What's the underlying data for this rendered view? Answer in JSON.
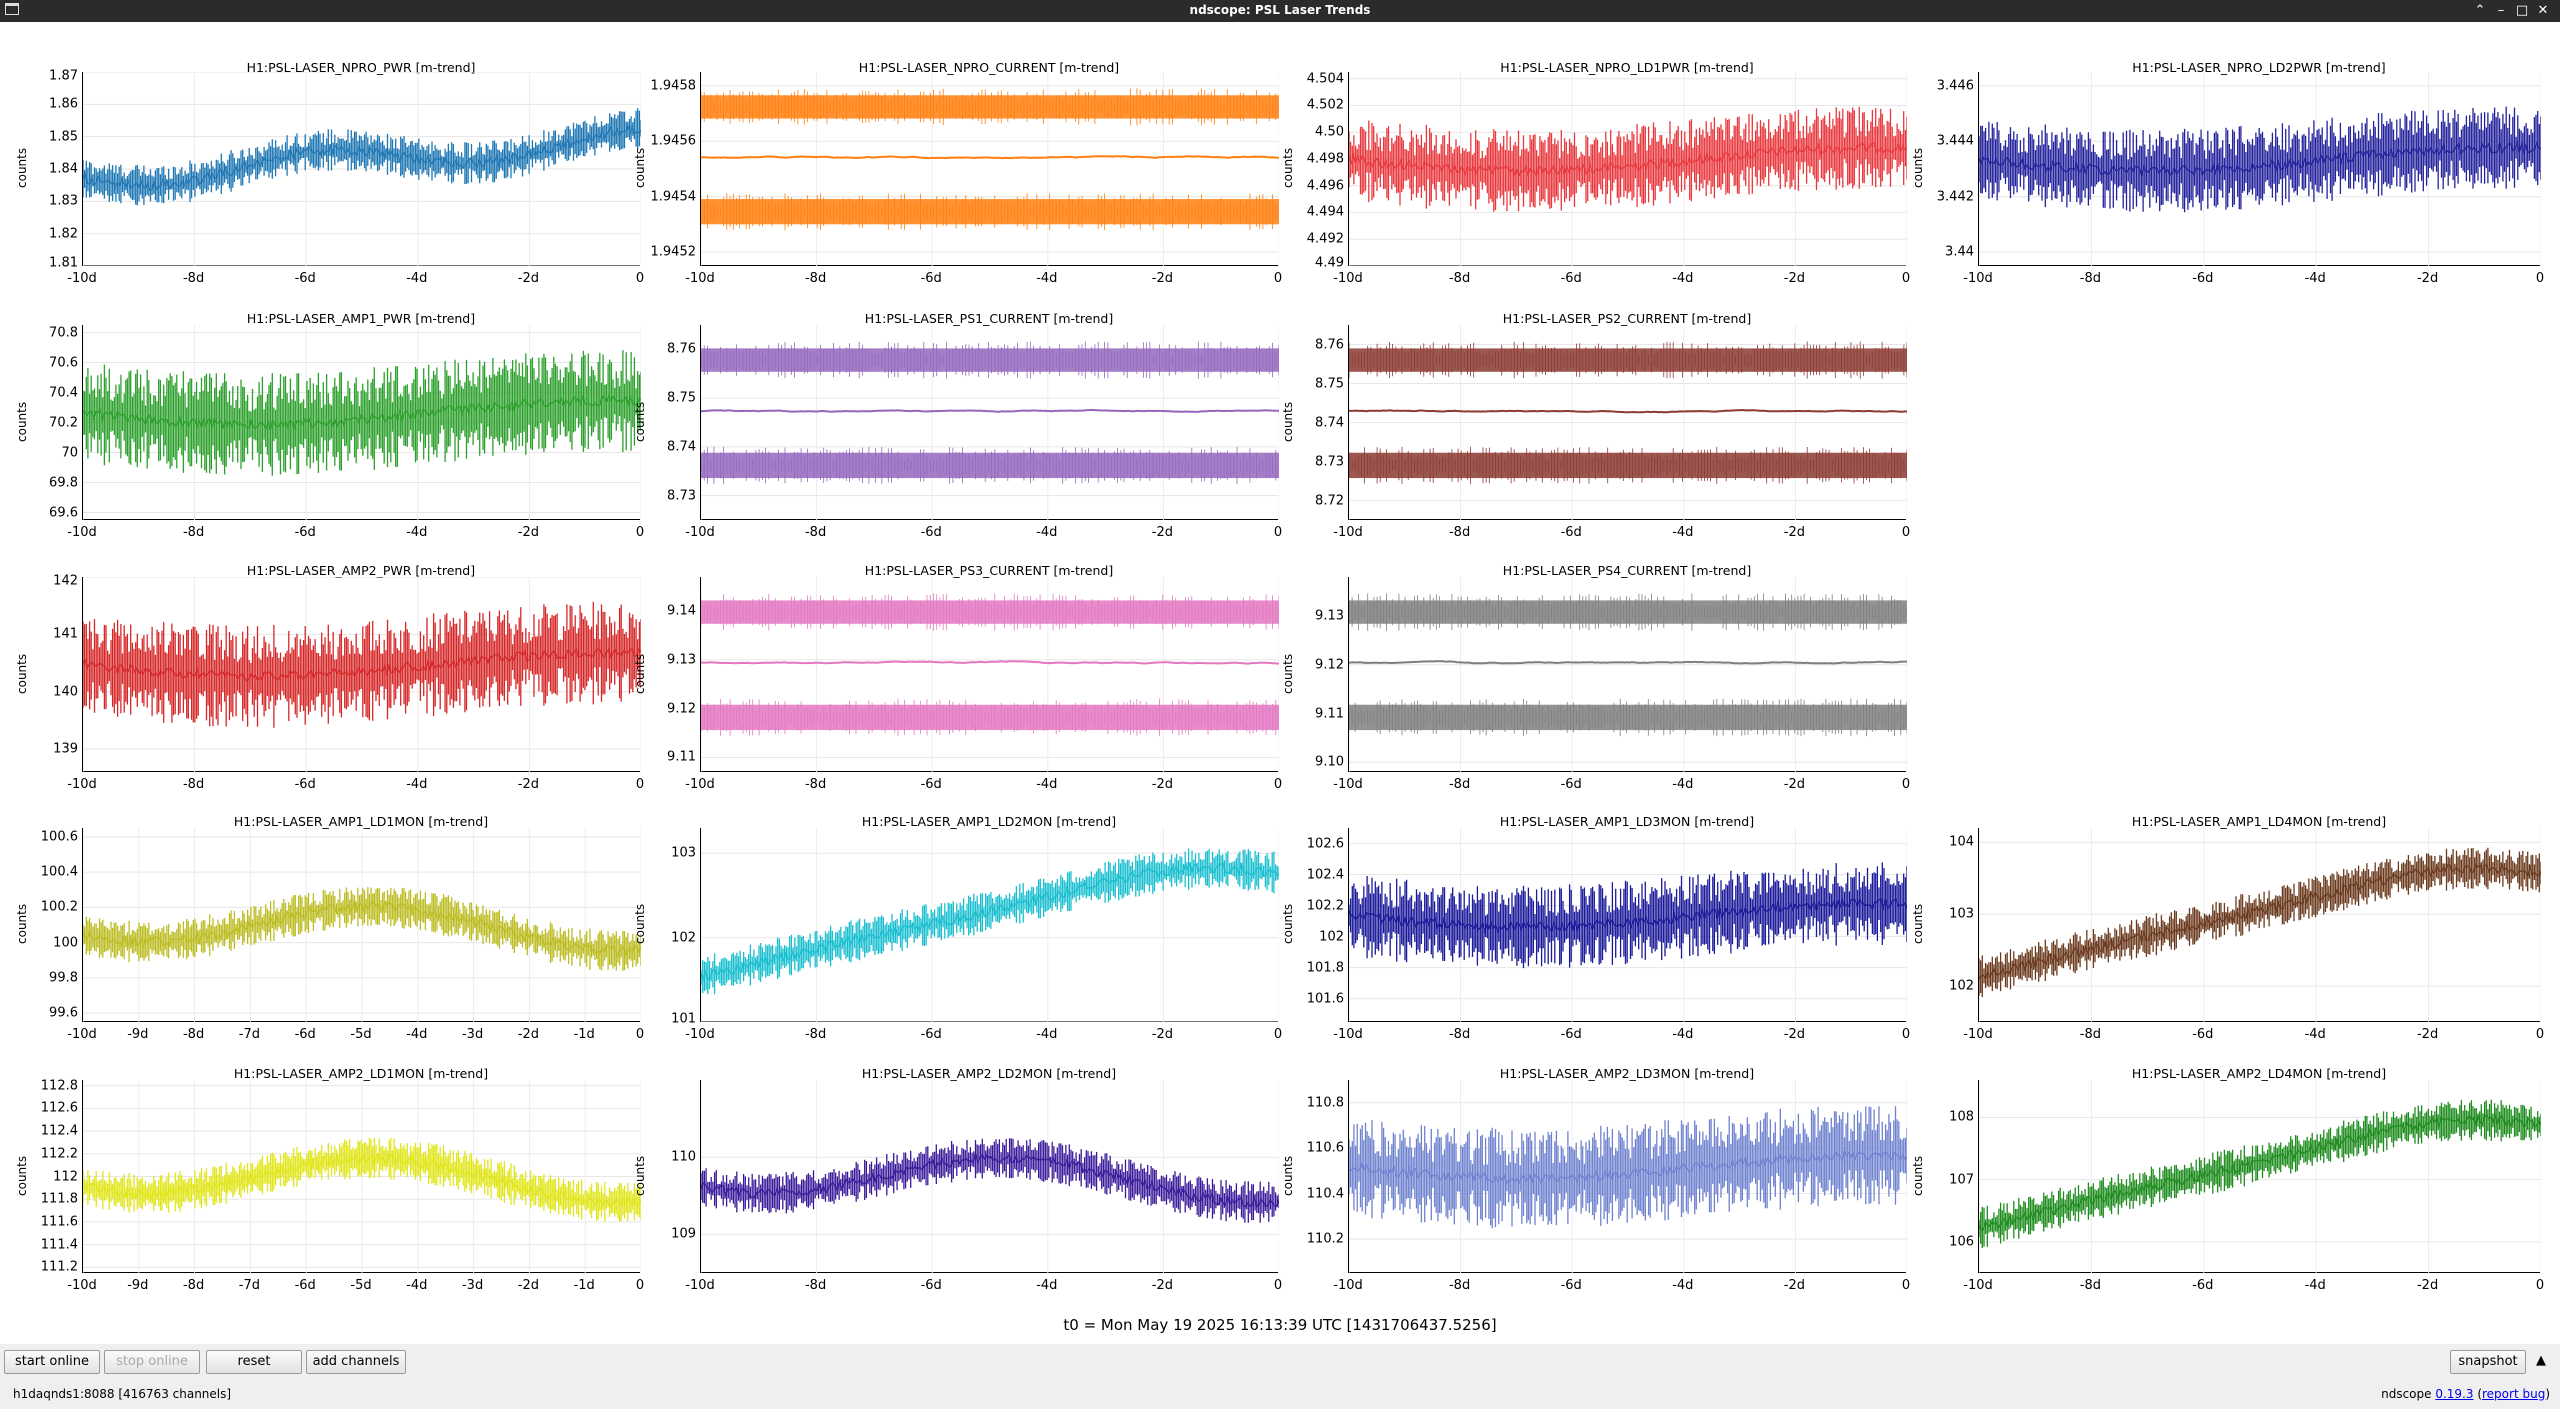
{
  "window": {
    "title": "ndscope: PSL Laser Trends"
  },
  "plots": [
    {
      "id": "npro-pwr",
      "title": "H1:PSL-LASER_NPRO_PWR [m-trend]",
      "ylabel": "counts",
      "color": "#1f77b4",
      "style": "band",
      "yticks": [
        "1.87",
        "1.86",
        "1.85",
        "1.84",
        "1.83",
        "1.82",
        "1.81"
      ],
      "ylim": [
        1.81,
        1.87
      ],
      "xticks": [
        "-10d",
        "-8d",
        "-6d",
        "-4d",
        "-2d",
        "0"
      ]
    },
    {
      "id": "npro-current",
      "title": "H1:PSL-LASER_NPRO_CURRENT [m-trend]",
      "ylabel": "counts",
      "color": "#ff7f0e",
      "style": "quant",
      "yticks": [
        "1.9458",
        "1.9456",
        "1.9454",
        "1.9452"
      ],
      "ylim": [
        1.94515,
        1.94585
      ],
      "xticks": [
        "-10d",
        "-8d",
        "-6d",
        "-4d",
        "-2d",
        "0"
      ]
    },
    {
      "id": "npro-ld1pwr",
      "title": "H1:PSL-LASER_NPRO_LD1PWR [m-trend]",
      "ylabel": "counts",
      "color": "#e8383d",
      "style": "spiky",
      "yticks": [
        "4.504",
        "4.502",
        "4.50",
        "4.498",
        "4.496",
        "4.494",
        "4.492",
        "4.49"
      ],
      "ylim": [
        4.49,
        4.5045
      ],
      "xticks": [
        "-10d",
        "-8d",
        "-6d",
        "-4d",
        "-2d",
        "0"
      ]
    },
    {
      "id": "npro-ld2pwr",
      "title": "H1:PSL-LASER_NPRO_LD2PWR [m-trend]",
      "ylabel": "counts",
      "color": "#22229c",
      "style": "spiky",
      "yticks": [
        "3.446",
        "3.444",
        "3.442",
        "3.44"
      ],
      "ylim": [
        3.4395,
        3.4465
      ],
      "xticks": [
        "-10d",
        "-8d",
        "-6d",
        "-4d",
        "-2d",
        "0"
      ]
    },
    {
      "id": "amp1-pwr",
      "title": "H1:PSL-LASER_AMP1_PWR [m-trend]",
      "ylabel": "counts",
      "color": "#2ca02c",
      "style": "noisy",
      "yticks": [
        "70.8",
        "70.6",
        "70.4",
        "70.2",
        "70",
        "69.8",
        "69.6"
      ],
      "ylim": [
        69.55,
        70.85
      ],
      "xticks": [
        "-10d",
        "-8d",
        "-6d",
        "-4d",
        "-2d",
        "0"
      ]
    },
    {
      "id": "ps1-current",
      "title": "H1:PSL-LASER_PS1_CURRENT [m-trend]",
      "ylabel": "counts",
      "color": "#9467bd",
      "style": "quant3",
      "yticks": [
        "8.76",
        "8.75",
        "8.74",
        "8.73"
      ],
      "ylim": [
        8.725,
        8.765
      ],
      "xticks": [
        "-10d",
        "-8d",
        "-6d",
        "-4d",
        "-2d",
        "0"
      ]
    },
    {
      "id": "ps2-current",
      "title": "H1:PSL-LASER_PS2_CURRENT [m-trend]",
      "ylabel": "counts",
      "color": "#8c3a32",
      "style": "quant3",
      "yticks": [
        "8.76",
        "8.75",
        "8.74",
        "8.73",
        "8.72"
      ],
      "ylim": [
        8.715,
        8.765
      ],
      "xticks": [
        "-10d",
        "-8d",
        "-6d",
        "-4d",
        "-2d",
        "0"
      ]
    },
    {
      "id": "amp2-pwr",
      "title": "H1:PSL-LASER_AMP2_PWR [m-trend]",
      "ylabel": "counts",
      "color": "#d62728",
      "style": "noisy",
      "yticks": [
        "142",
        "141",
        "140",
        "139"
      ],
      "ylim": [
        138.6,
        142
      ],
      "xticks": [
        "-10d",
        "-8d",
        "-6d",
        "-4d",
        "-2d",
        "0"
      ]
    },
    {
      "id": "ps3-current",
      "title": "H1:PSL-LASER_PS3_CURRENT [m-trend]",
      "ylabel": "counts",
      "color": "#e377c2",
      "style": "quant3",
      "yticks": [
        "9.14",
        "9.13",
        "9.12",
        "9.11"
      ],
      "ylim": [
        9.107,
        9.147
      ],
      "xticks": [
        "-10d",
        "-8d",
        "-6d",
        "-4d",
        "-2d",
        "0"
      ]
    },
    {
      "id": "ps4-current",
      "title": "H1:PSL-LASER_PS4_CURRENT [m-trend]",
      "ylabel": "counts",
      "color": "#7f7f7f",
      "style": "quant3",
      "yticks": [
        "9.13",
        "9.12",
        "9.11",
        "9.10"
      ],
      "ylim": [
        9.098,
        9.138
      ],
      "xticks": [
        "-10d",
        "-8d",
        "-6d",
        "-4d",
        "-2d",
        "0"
      ]
    },
    {
      "id": "amp1-ld1mon",
      "title": "H1:PSL-LASER_AMP1_LD1MON [m-trend]",
      "ylabel": "counts",
      "color": "#bcbd22",
      "style": "drift",
      "yticks": [
        "100.6",
        "100.4",
        "100.2",
        "100",
        "99.8",
        "99.6"
      ],
      "ylim": [
        99.55,
        100.65
      ],
      "xticks": [
        "-10d",
        "-9d",
        "-8d",
        "-7d",
        "-6d",
        "-5d",
        "-4d",
        "-3d",
        "-2d",
        "-1d",
        "0"
      ]
    },
    {
      "id": "amp1-ld2mon",
      "title": "H1:PSL-LASER_AMP1_LD2MON [m-trend]",
      "ylabel": "counts",
      "color": "#17becf",
      "style": "rise",
      "yticks": [
        "103",
        "102",
        "101"
      ],
      "ylim": [
        101,
        103.3
      ],
      "xticks": [
        "-10d",
        "-8d",
        "-6d",
        "-4d",
        "-2d",
        "0"
      ]
    },
    {
      "id": "amp1-ld3mon",
      "title": "H1:PSL-LASER_AMP1_LD3MON [m-trend]",
      "ylabel": "counts",
      "color": "#1a1a9a",
      "style": "spiky",
      "yticks": [
        "102.6",
        "102.4",
        "102.2",
        "102",
        "101.8",
        "101.6"
      ],
      "ylim": [
        101.45,
        102.7
      ],
      "xticks": [
        "-10d",
        "-8d",
        "-6d",
        "-4d",
        "-2d",
        "0"
      ]
    },
    {
      "id": "amp1-ld4mon",
      "title": "H1:PSL-LASER_AMP1_LD4MON [m-trend]",
      "ylabel": "counts",
      "color": "#6b3a1e",
      "style": "rise",
      "yticks": [
        "104",
        "103",
        "102"
      ],
      "ylim": [
        101.5,
        104.2
      ],
      "xticks": [
        "-10d",
        "-8d",
        "-6d",
        "-4d",
        "-2d",
        "0"
      ]
    },
    {
      "id": "amp2-ld1mon",
      "title": "H1:PSL-LASER_AMP2_LD1MON [m-trend]",
      "ylabel": "counts",
      "color": "#e0e619",
      "style": "drift",
      "yticks": [
        "112.8",
        "112.6",
        "112.4",
        "112.2",
        "112",
        "111.8",
        "111.6",
        "111.4",
        "111.2"
      ],
      "ylim": [
        111.15,
        112.85
      ],
      "xticks": [
        "-10d",
        "-9d",
        "-8d",
        "-7d",
        "-6d",
        "-5d",
        "-4d",
        "-3d",
        "-2d",
        "-1d",
        "0"
      ]
    },
    {
      "id": "amp2-ld2mon",
      "title": "H1:PSL-LASER_AMP2_LD2MON [m-trend]",
      "ylabel": "counts",
      "color": "#3a1a9a",
      "style": "drift",
      "yticks": [
        "110",
        "109"
      ],
      "ylim": [
        108.5,
        111
      ],
      "xticks": [
        "-10d",
        "-8d",
        "-6d",
        "-4d",
        "-2d",
        "0"
      ]
    },
    {
      "id": "amp2-ld3mon",
      "title": "H1:PSL-LASER_AMP2_LD3MON [m-trend]",
      "ylabel": "counts",
      "color": "#6f82cf",
      "style": "noisy",
      "yticks": [
        "110.8",
        "110.6",
        "110.4",
        "110.2"
      ],
      "ylim": [
        110.05,
        110.9
      ],
      "xticks": [
        "-10d",
        "-8d",
        "-6d",
        "-4d",
        "-2d",
        "0"
      ]
    },
    {
      "id": "amp2-ld4mon",
      "title": "H1:PSL-LASER_AMP2_LD4MON [m-trend]",
      "ylabel": "counts",
      "color": "#1e8c1e",
      "style": "rise",
      "yticks": [
        "108",
        "107",
        "106"
      ],
      "ylim": [
        105.5,
        108.6
      ],
      "xticks": [
        "-10d",
        "-8d",
        "-6d",
        "-4d",
        "-2d",
        "0"
      ]
    }
  ],
  "t0_label": "t0 = Mon May 19 2025 16:13:39 UTC [1431706437.5256]",
  "toolbar": {
    "start_online": "start online",
    "stop_online": "stop online",
    "reset": "reset",
    "add_channels": "add channels",
    "snapshot": "snapshot"
  },
  "status": {
    "server": "h1daqnds1:8088  [416763 channels]",
    "version_prefix": "ndscope ",
    "version": "0.19.3",
    "report_bug": "report bug"
  }
}
